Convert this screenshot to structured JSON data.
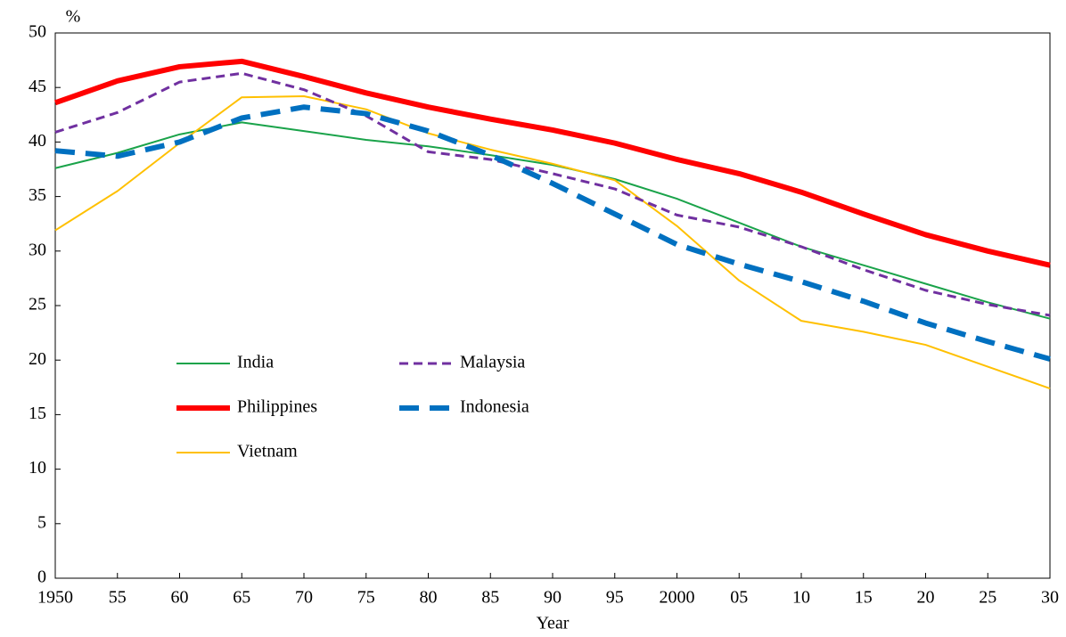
{
  "chart_data": {
    "type": "line",
    "y_label": "%",
    "x_label": "Year",
    "categories": [
      "1950",
      "55",
      "60",
      "65",
      "70",
      "75",
      "80",
      "85",
      "90",
      "95",
      "2000",
      "05",
      "10",
      "15",
      "20",
      "25",
      "30"
    ],
    "ylim": [
      0,
      50
    ],
    "yticks": [
      0,
      5,
      10,
      15,
      20,
      25,
      30,
      35,
      40,
      45,
      50
    ],
    "series": [
      {
        "name": "India",
        "color": "#1aa34a",
        "linestyle": "solid",
        "weight": "thin",
        "values": [
          37.6,
          39.0,
          40.7,
          41.8,
          41.0,
          40.2,
          39.6,
          38.8,
          37.9,
          36.6,
          34.8,
          32.6,
          30.4,
          28.7,
          27.0,
          25.3,
          23.8
        ]
      },
      {
        "name": "Philippines",
        "color": "#ff0000",
        "linestyle": "solid",
        "weight": "bold",
        "values": [
          43.6,
          45.6,
          46.9,
          47.4,
          46.0,
          44.5,
          43.2,
          42.1,
          41.1,
          39.9,
          38.4,
          37.1,
          35.4,
          33.4,
          31.5,
          30.0,
          28.7
        ]
      },
      {
        "name": "Vietnam",
        "color": "#ffc000",
        "linestyle": "solid",
        "weight": "thin",
        "values": [
          31.9,
          35.5,
          39.9,
          44.1,
          44.2,
          43.0,
          40.8,
          39.3,
          38.0,
          36.5,
          32.3,
          27.3,
          23.6,
          22.6,
          21.4,
          19.4,
          17.4
        ]
      },
      {
        "name": "Malaysia",
        "color": "#7030a0",
        "linestyle": "dashed",
        "weight": "medium",
        "values": [
          40.9,
          42.7,
          45.5,
          46.3,
          44.8,
          42.4,
          39.1,
          38.4,
          37.1,
          35.7,
          33.3,
          32.2,
          30.4,
          28.3,
          26.4,
          25.1,
          24.1
        ]
      },
      {
        "name": "Indonesia",
        "color": "#0070c0",
        "linestyle": "dashed",
        "weight": "bold",
        "values": [
          39.2,
          38.7,
          40.0,
          42.2,
          43.2,
          42.6,
          41.0,
          38.8,
          36.2,
          33.4,
          30.6,
          28.8,
          27.2,
          25.4,
          23.4,
          21.7,
          20.1
        ]
      }
    ]
  }
}
